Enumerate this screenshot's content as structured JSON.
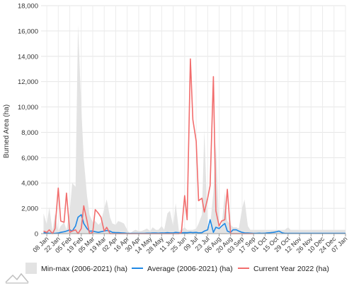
{
  "chart_data": {
    "type": "area",
    "ylabel": "Burned Area (ha)",
    "ylim": [
      0,
      18000
    ],
    "yticks": [
      0,
      2000,
      4000,
      6000,
      8000,
      10000,
      12000,
      14000,
      16000,
      18000
    ],
    "ytick_labels": [
      "0",
      "2,000",
      "4,000",
      "6,000",
      "8,000",
      "10,000",
      "12,000",
      "14,000",
      "16,000",
      "18,000"
    ],
    "x_days": [
      8,
      22,
      36,
      50,
      64,
      78,
      92,
      106,
      120,
      134,
      148,
      162,
      176,
      190,
      204,
      218,
      232,
      246,
      260,
      274,
      288,
      302,
      316,
      330,
      344,
      358,
      372
    ],
    "x_labels": [
      "08 Jan",
      "22 Jan",
      "05 Feb",
      "19 Feb",
      "05 Mar",
      "19 Mar",
      "02 Apr",
      "16 Apr",
      "30 Apr",
      "14 May",
      "28 May",
      "11 Jun",
      "25 Jun",
      "09 Jul",
      "23 Jul",
      "06 Aug",
      "20 Aug",
      "03 Sep",
      "17 Sep",
      "01 Oct",
      "15 Oct",
      "29 Oct",
      "12 Nov",
      "26 Nov",
      "10 Dec",
      "24 Dec",
      "07 Jan"
    ],
    "grid": true,
    "legend_position": "bottom",
    "series": [
      {
        "name": "Min-max (2006-2021) (ha)",
        "kind": "band",
        "color": "#e3e3e3",
        "x": [
          4,
          8,
          11,
          15,
          18,
          22,
          25,
          29,
          32,
          36,
          39,
          43,
          46,
          50,
          53,
          57,
          60,
          64,
          67,
          71,
          74,
          78,
          81,
          85,
          88,
          92,
          95,
          99,
          102,
          106,
          109,
          113,
          116,
          120,
          123,
          127,
          130,
          134,
          137,
          141,
          144,
          148,
          151,
          155,
          158,
          162,
          165,
          169,
          172,
          176,
          179,
          183,
          186,
          190,
          193,
          197,
          200,
          204,
          207,
          211,
          214,
          218,
          221,
          225,
          228,
          232,
          235,
          239,
          242,
          246,
          249,
          253,
          256,
          260,
          263,
          267,
          270,
          274,
          277,
          281,
          284,
          288,
          291,
          295,
          298,
          302,
          305,
          309,
          312,
          316,
          319,
          323,
          326,
          330,
          333,
          337,
          340,
          344,
          347,
          351,
          354,
          358,
          361,
          365,
          368,
          372
        ],
        "min": [
          0,
          0,
          0,
          0,
          0,
          0,
          0,
          0,
          0,
          0,
          0,
          0,
          0,
          0,
          0,
          0,
          0,
          0,
          0,
          0,
          0,
          0,
          0,
          0,
          0,
          0,
          0,
          0,
          0,
          0,
          0,
          0,
          0,
          0,
          0,
          0,
          0,
          0,
          0,
          0,
          0,
          0,
          0,
          0,
          0,
          0,
          0,
          0,
          0,
          0,
          0,
          0,
          0,
          0,
          0,
          0,
          0,
          0,
          0,
          0,
          0,
          0,
          0,
          0,
          0,
          0,
          0,
          0,
          0,
          0,
          0,
          0,
          0,
          0,
          0,
          0,
          0,
          0,
          0,
          0,
          0,
          0,
          0,
          0,
          0,
          0,
          0,
          0,
          0,
          0,
          0,
          0,
          0,
          0,
          0,
          0,
          0,
          0,
          0,
          0,
          0,
          0,
          0,
          0,
          0,
          0
        ],
        "max": [
          1600,
          700,
          2100,
          200,
          1600,
          200,
          600,
          900,
          300,
          1800,
          4000,
          3700,
          16500,
          10000,
          5900,
          3000,
          1500,
          900,
          1000,
          700,
          900,
          2000,
          2700,
          1300,
          800,
          700,
          1000,
          900,
          800,
          300,
          0,
          200,
          300,
          200,
          200,
          300,
          400,
          200,
          500,
          300,
          300,
          600,
          300,
          1600,
          1800,
          600,
          2400,
          200,
          300,
          500,
          300,
          300,
          300,
          400,
          800,
          1500,
          8200,
          500,
          600,
          3300,
          7200,
          500,
          500,
          3300,
          1000,
          700,
          500,
          500,
          400,
          2000,
          2700,
          600,
          300,
          300,
          300,
          300,
          300,
          300,
          300,
          300,
          300,
          300,
          300,
          300,
          300,
          500,
          300,
          300,
          300,
          300,
          300,
          300,
          300,
          300,
          300,
          300,
          300,
          300,
          300,
          300,
          300,
          300,
          300,
          300,
          300,
          300
        ]
      },
      {
        "name": "Average (2006-2021) (ha)",
        "kind": "line",
        "color": "#1e88e5",
        "x": [
          4,
          8,
          11,
          15,
          18,
          22,
          25,
          29,
          32,
          36,
          39,
          43,
          46,
          50,
          53,
          57,
          60,
          64,
          67,
          71,
          74,
          78,
          81,
          85,
          88,
          92,
          95,
          99,
          102,
          106,
          109,
          113,
          116,
          120,
          123,
          127,
          130,
          134,
          137,
          141,
          144,
          148,
          151,
          155,
          158,
          162,
          165,
          169,
          172,
          176,
          179,
          183,
          186,
          190,
          193,
          197,
          200,
          204,
          207,
          211,
          214,
          218,
          221,
          225,
          228,
          232,
          235,
          239,
          242,
          246,
          249,
          253,
          256,
          260,
          263,
          267,
          270,
          274,
          277,
          281,
          284,
          288,
          291,
          295,
          298,
          302,
          305,
          309,
          312,
          316,
          319,
          323,
          326,
          330,
          333,
          337,
          340,
          344,
          347,
          351,
          354,
          358,
          361,
          365,
          368,
          372
        ],
        "y": [
          80,
          50,
          20,
          30,
          20,
          50,
          100,
          150,
          200,
          300,
          200,
          600,
          1300,
          1500,
          800,
          400,
          200,
          200,
          150,
          100,
          150,
          200,
          250,
          200,
          100,
          80,
          80,
          60,
          50,
          30,
          20,
          20,
          20,
          20,
          20,
          30,
          40,
          40,
          50,
          50,
          40,
          60,
          50,
          80,
          60,
          60,
          100,
          70,
          60,
          80,
          70,
          100,
          80,
          100,
          60,
          80,
          200,
          300,
          1100,
          100,
          500,
          400,
          600,
          800,
          200,
          100,
          300,
          300,
          200,
          100,
          60,
          50,
          40,
          30,
          30,
          40,
          30,
          40,
          60,
          80,
          100,
          150,
          200,
          60,
          30,
          20,
          20,
          20,
          20,
          20,
          20,
          20,
          30,
          30,
          20,
          20,
          20,
          20,
          20,
          20,
          20,
          20,
          20,
          20,
          20,
          20
        ]
      },
      {
        "name": "Current Year 2022 (ha)",
        "kind": "line",
        "color": "#f26d6d",
        "x": [
          4,
          8,
          11,
          15,
          18,
          22,
          25,
          29,
          32,
          36,
          39,
          43,
          46,
          50,
          53,
          57,
          60,
          64,
          67,
          71,
          74,
          78,
          81,
          85,
          88,
          92,
          95,
          99,
          102,
          106,
          109,
          113,
          116,
          120,
          123,
          127,
          130,
          134,
          137,
          141,
          144,
          148,
          151,
          155,
          158,
          162,
          165,
          169,
          172,
          176,
          179,
          183,
          186,
          190,
          193,
          197,
          200,
          204,
          207,
          211,
          214,
          218,
          221,
          225,
          228,
          232,
          235,
          239,
          242,
          246,
          249,
          253,
          256,
          260
        ],
        "y": [
          200,
          100,
          300,
          0,
          400,
          3600,
          1000,
          900,
          3200,
          100,
          200,
          300,
          0,
          400,
          2200,
          1000,
          0,
          100,
          1900,
          1600,
          1300,
          200,
          500,
          0,
          0,
          0,
          0,
          0,
          0,
          0,
          0,
          0,
          0,
          0,
          0,
          0,
          0,
          0,
          0,
          0,
          0,
          0,
          0,
          0,
          0,
          0,
          0,
          0,
          100,
          3000,
          1100,
          13800,
          9000,
          7300,
          2600,
          2800,
          1700,
          2800,
          3800,
          12400,
          1800,
          600,
          1000,
          1100,
          3500,
          0,
          0,
          0,
          0,
          0,
          0,
          0,
          0,
          0
        ]
      }
    ]
  }
}
